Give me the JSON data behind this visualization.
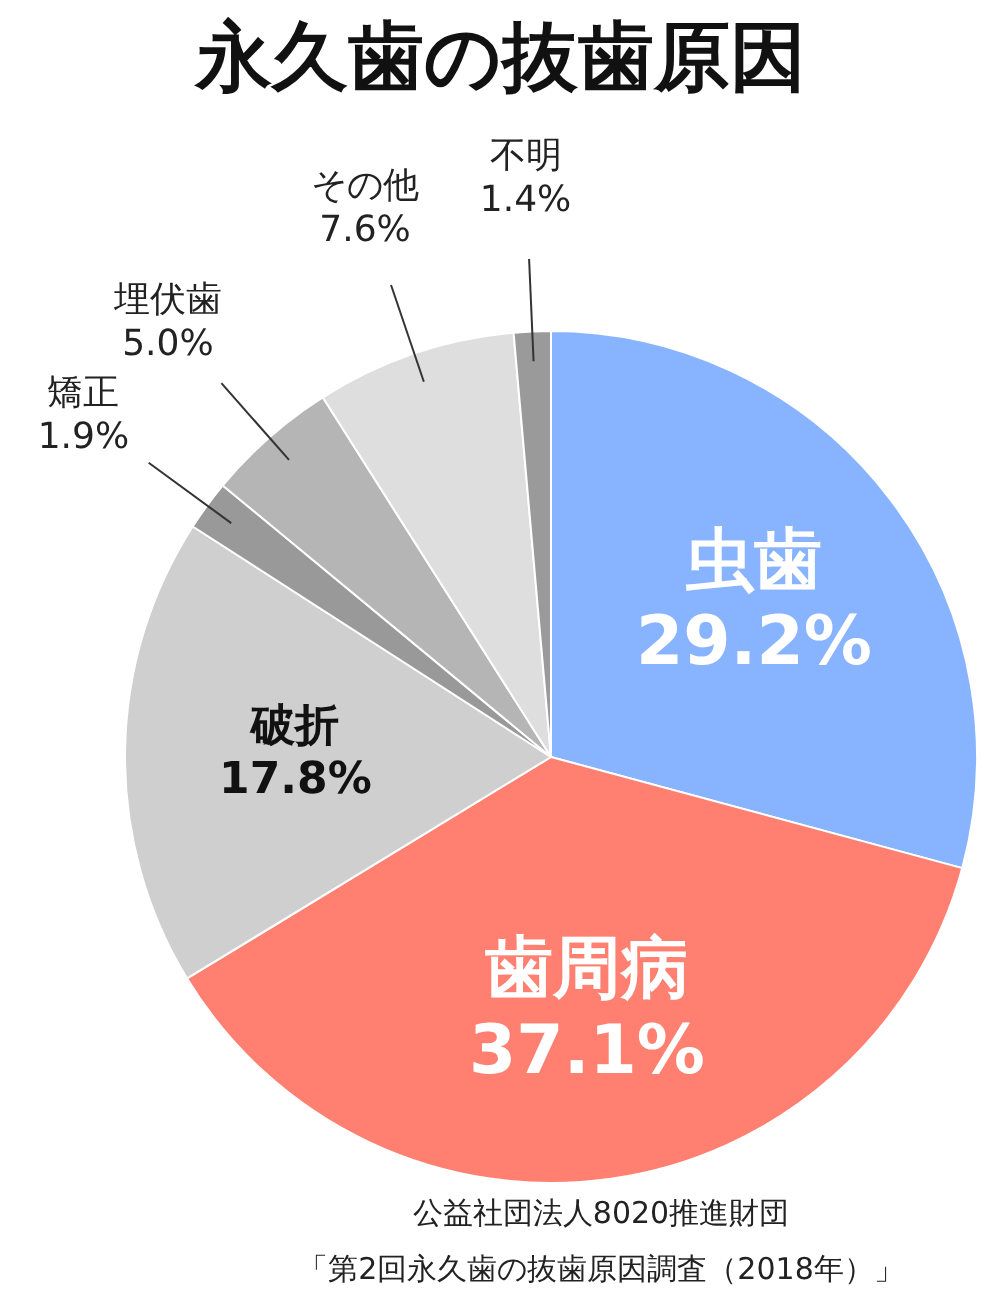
{
  "chart_data": {
    "type": "pie",
    "title": "永久歯の抜歯原因",
    "categories": [
      "虫歯",
      "歯周病",
      "破折",
      "矯正",
      "埋伏歯",
      "その他",
      "不明"
    ],
    "values": [
      29.2,
      37.1,
      17.8,
      1.9,
      5.0,
      7.6,
      1.4
    ],
    "value_labels": [
      "29.2%",
      "37.1%",
      "17.8%",
      "1.9%",
      "5.0%",
      "7.6%",
      "1.4%"
    ],
    "colors": [
      "#88b4ff",
      "#ff8070",
      "#cfcfcf",
      "#999999",
      "#b5b5b5",
      "#dedede",
      "#9a9a9a"
    ],
    "annotations": [
      "公益社団法人8020推進財団",
      "「第2回永久歯の抜歯原因調査（2018年）」"
    ]
  }
}
